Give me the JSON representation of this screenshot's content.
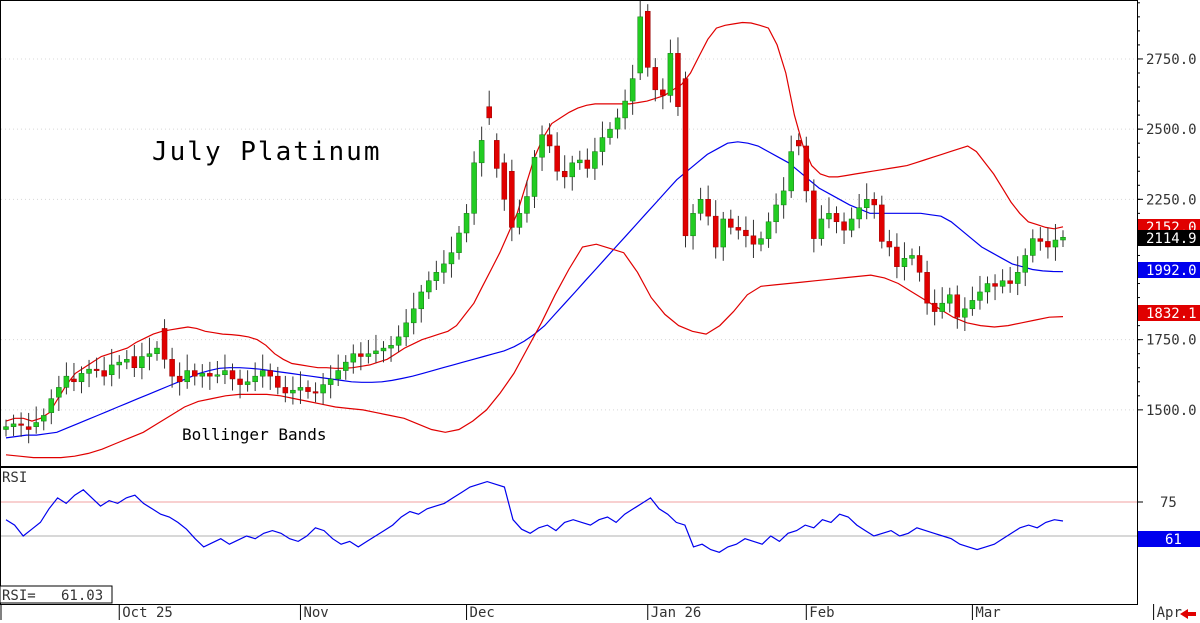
{
  "chart_data": {
    "type": "candlestick",
    "title": "July Platinum",
    "annotation": "Bollinger Bands",
    "price_axis": {
      "ticks": [
        "2750.0",
        "2500.0",
        "2250.0",
        "1750.0",
        "1500.0"
      ],
      "tick_values": [
        2750,
        2500,
        2250,
        1750,
        1500
      ],
      "range": [
        1300,
        2960
      ]
    },
    "time_axis": {
      "labels": [
        "Oct 25",
        "Nov",
        "Dec",
        "Jan 26",
        "Feb",
        "Mar",
        "Apr"
      ],
      "label_bar_index": [
        15,
        39,
        61,
        85,
        106,
        128,
        152
      ]
    },
    "last_values": {
      "upper_band": "2152.0",
      "close": "2114.9",
      "middle_band": "1992.0",
      "lower_band": "1832.1"
    },
    "closes": [
      1440,
      1450,
      1445,
      1430,
      1455,
      1480,
      1540,
      1580,
      1620,
      1600,
      1630,
      1645,
      1640,
      1620,
      1660,
      1670,
      1680,
      1650,
      1690,
      1700,
      1720,
      1680,
      1620,
      1600,
      1640,
      1620,
      1630,
      1620,
      1625,
      1640,
      1610,
      1590,
      1600,
      1620,
      1640,
      1620,
      1580,
      1560,
      1570,
      1580,
      1565,
      1560,
      1590,
      1610,
      1640,
      1670,
      1700,
      1690,
      1700,
      1710,
      1720,
      1730,
      1760,
      1810,
      1860,
      1920,
      1960,
      1990,
      2020,
      2060,
      2130,
      2200,
      2380,
      2460,
      2540,
      2360,
      2250,
      2150,
      2200,
      2260,
      2400,
      2480,
      2440,
      2350,
      2330,
      2380,
      2390,
      2360,
      2420,
      2470,
      2500,
      2540,
      2600,
      2680,
      2900,
      2720,
      2640,
      2620,
      2770,
      2580,
      2120,
      2200,
      2250,
      2190,
      2080,
      2180,
      2150,
      2140,
      2120,
      2090,
      2110,
      2170,
      2230,
      2280,
      2420,
      2440,
      2280,
      2110,
      2180,
      2200,
      2170,
      2140,
      2180,
      2220,
      2250,
      2230,
      2100,
      2080,
      2010,
      2040,
      2050,
      1990,
      1880,
      1850,
      1880,
      1910,
      1830,
      1860,
      1890,
      1920,
      1950,
      1940,
      1960,
      1950,
      1990,
      2050,
      2110,
      2100,
      2080,
      2105,
      2114.9
    ],
    "opens": [
      1430,
      1440,
      1450,
      1440,
      1440,
      1460,
      1490,
      1545,
      1580,
      1610,
      1600,
      1630,
      1645,
      1640,
      1625,
      1660,
      1670,
      1690,
      1650,
      1690,
      1700,
      1790,
      1680,
      1620,
      1600,
      1640,
      1620,
      1630,
      1620,
      1625,
      1640,
      1610,
      1590,
      1600,
      1620,
      1640,
      1620,
      1580,
      1560,
      1570,
      1580,
      1565,
      1560,
      1590,
      1610,
      1640,
      1670,
      1700,
      1690,
      1700,
      1710,
      1720,
      1730,
      1760,
      1810,
      1860,
      1920,
      1960,
      1990,
      2020,
      2060,
      2130,
      2200,
      2380,
      2580,
      2460,
      2380,
      2350,
      2150,
      2200,
      2260,
      2400,
      2480,
      2440,
      2350,
      2330,
      2380,
      2390,
      2360,
      2420,
      2470,
      2500,
      2540,
      2600,
      2700,
      2920,
      2720,
      2640,
      2620,
      2770,
      2680,
      2120,
      2200,
      2250,
      2190,
      2080,
      2180,
      2150,
      2140,
      2120,
      2090,
      2110,
      2170,
      2230,
      2280,
      2460,
      2440,
      2280,
      2110,
      2180,
      2200,
      2170,
      2140,
      2180,
      2220,
      2250,
      2230,
      2100,
      2080,
      2010,
      2040,
      2050,
      1990,
      1880,
      1850,
      1880,
      1910,
      1830,
      1860,
      1890,
      1920,
      1950,
      1940,
      1960,
      1950,
      1990,
      2050,
      2110,
      2100,
      2080,
      2105
    ],
    "upper_band": [
      1460,
      1470,
      1470,
      1460,
      1470,
      1490,
      1540,
      1590,
      1630,
      1650,
      1670,
      1690,
      1700,
      1710,
      1720,
      1740,
      1755,
      1770,
      1780,
      1785,
      1790,
      1795,
      1790,
      1780,
      1775,
      1770,
      1768,
      1765,
      1760,
      1750,
      1730,
      1700,
      1680,
      1665,
      1660,
      1655,
      1650,
      1650,
      1648,
      1648,
      1650,
      1655,
      1660,
      1670,
      1680,
      1700,
      1720,
      1735,
      1750,
      1760,
      1770,
      1780,
      1800,
      1840,
      1880,
      1940,
      2000,
      2060,
      2130,
      2200,
      2300,
      2400,
      2470,
      2520,
      2540,
      2560,
      2575,
      2585,
      2590,
      2590,
      2590,
      2590,
      2590,
      2595,
      2600,
      2610,
      2620,
      2640,
      2660,
      2700,
      2760,
      2820,
      2860,
      2870,
      2875,
      2880,
      2878,
      2870,
      2860,
      2800,
      2700,
      2550,
      2440,
      2370,
      2340,
      2330,
      2330,
      2335,
      2340,
      2345,
      2350,
      2355,
      2360,
      2365,
      2370,
      2380,
      2390,
      2400,
      2410,
      2420,
      2430,
      2440,
      2420,
      2380,
      2340,
      2290,
      2240,
      2200,
      2170,
      2160,
      2150,
      2145,
      2152
    ],
    "middle_band": [
      1400,
      1405,
      1410,
      1410,
      1415,
      1420,
      1435,
      1450,
      1465,
      1480,
      1495,
      1510,
      1525,
      1540,
      1555,
      1570,
      1585,
      1600,
      1615,
      1630,
      1640,
      1648,
      1650,
      1650,
      1648,
      1645,
      1640,
      1635,
      1630,
      1625,
      1620,
      1615,
      1610,
      1605,
      1600,
      1598,
      1598,
      1600,
      1605,
      1612,
      1620,
      1630,
      1640,
      1650,
      1660,
      1670,
      1680,
      1690,
      1700,
      1710,
      1725,
      1745,
      1770,
      1800,
      1840,
      1880,
      1920,
      1960,
      2000,
      2040,
      2080,
      2120,
      2160,
      2200,
      2240,
      2280,
      2320,
      2350,
      2380,
      2410,
      2430,
      2450,
      2455,
      2450,
      2440,
      2420,
      2400,
      2380,
      2350,
      2320,
      2290,
      2270,
      2250,
      2230,
      2215,
      2200,
      2200,
      2200,
      2200,
      2200,
      2200,
      2195,
      2190,
      2170,
      2140,
      2110,
      2080,
      2060,
      2040,
      2020,
      2010,
      2000,
      1995,
      1993,
      1992
    ],
    "lower_band": [
      1340,
      1335,
      1330,
      1330,
      1330,
      1335,
      1345,
      1360,
      1380,
      1400,
      1420,
      1450,
      1480,
      1510,
      1530,
      1540,
      1550,
      1555,
      1555,
      1555,
      1550,
      1540,
      1530,
      1520,
      1510,
      1505,
      1500,
      1490,
      1480,
      1470,
      1450,
      1430,
      1420,
      1430,
      1460,
      1500,
      1560,
      1630,
      1720,
      1810,
      1910,
      2000,
      2080,
      2090,
      2075,
      2060,
      1990,
      1900,
      1840,
      1800,
      1780,
      1770,
      1800,
      1850,
      1910,
      1940,
      1945,
      1950,
      1955,
      1960,
      1965,
      1970,
      1975,
      1980,
      1970,
      1950,
      1920,
      1890,
      1860,
      1830,
      1810,
      1800,
      1795,
      1800,
      1810,
      1820,
      1830,
      1832.1
    ],
    "rsi": {
      "label": "RSI",
      "readout": "RSI=   61.03",
      "current_tag": "61",
      "ticks": [
        "75",
        "50"
      ],
      "tick_values": [
        75,
        50
      ],
      "range": [
        0,
        100
      ],
      "values": [
        62,
        58,
        50,
        55,
        60,
        70,
        78,
        74,
        80,
        84,
        78,
        72,
        76,
        74,
        78,
        80,
        74,
        70,
        66,
        64,
        60,
        55,
        48,
        42,
        45,
        48,
        44,
        47,
        50,
        48,
        52,
        54,
        52,
        48,
        46,
        50,
        56,
        54,
        48,
        44,
        46,
        42,
        46,
        50,
        54,
        58,
        64,
        68,
        66,
        70,
        72,
        74,
        78,
        82,
        86,
        88,
        90,
        88,
        86,
        62,
        55,
        52,
        56,
        58,
        54,
        60,
        62,
        60,
        58,
        62,
        64,
        60,
        66,
        70,
        74,
        78,
        70,
        66,
        60,
        58,
        42,
        44,
        40,
        38,
        42,
        44,
        48,
        46,
        44,
        50,
        46,
        52,
        54,
        58,
        56,
        62,
        60,
        66,
        64,
        58,
        54,
        50,
        52,
        54,
        50,
        52,
        56,
        54,
        52,
        50,
        48,
        44,
        42,
        40,
        42,
        44,
        48,
        52,
        56,
        58,
        56,
        60,
        62,
        61
      ]
    }
  }
}
